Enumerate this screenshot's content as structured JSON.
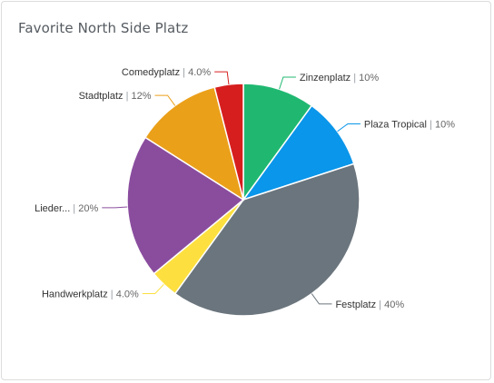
{
  "card": {
    "title": "Favorite North Side Platz"
  },
  "chart_data": {
    "type": "pie",
    "title": "Favorite North Side Platz",
    "slices": [
      {
        "label": "Zinzenplatz",
        "value": 10,
        "display": "10%",
        "color": "#20b871"
      },
      {
        "label": "Plaza Tropical",
        "value": 10,
        "display": "10%",
        "color": "#0a96ea"
      },
      {
        "label": "Festplatz",
        "value": 40,
        "display": "40%",
        "color": "#6b757d"
      },
      {
        "label": "Handwerkplatz",
        "value": 4,
        "display": "4.0%",
        "color": "#fde040"
      },
      {
        "label": "Lieder...",
        "value": 20,
        "display": "20%",
        "color": "#8a4d9e"
      },
      {
        "label": "Stadtplatz",
        "value": 12,
        "display": "12%",
        "color": "#eba01a"
      },
      {
        "label": "Comedyplatz",
        "value": 4,
        "display": "4.0%",
        "color": "#d61e1e"
      }
    ],
    "start_angle_deg": 0,
    "direction": "clockwise",
    "legend": "none"
  }
}
